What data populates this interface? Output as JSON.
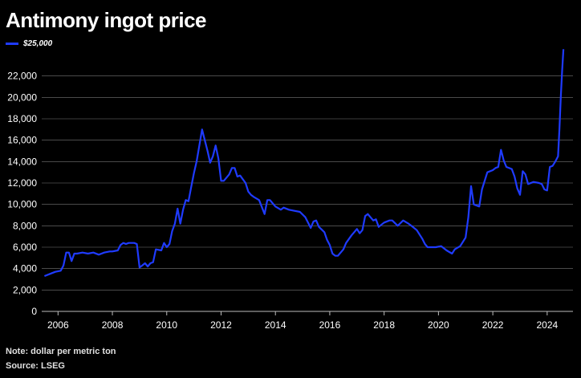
{
  "chart_data": {
    "type": "line",
    "title": "Antimony ingot price",
    "xlabel": "",
    "ylabel": "",
    "xlim": [
      2005.4,
      2024.95
    ],
    "ylim": [
      0,
      24000
    ],
    "yticks": [
      0,
      2000,
      4000,
      6000,
      8000,
      10000,
      12000,
      14000,
      16000,
      18000,
      20000,
      22000
    ],
    "ytick_labels": [
      "0",
      "2,000",
      "4,000",
      "6,000",
      "8,000",
      "10,000",
      "12,000",
      "14,000",
      "16,000",
      "18,000",
      "20,000",
      "22,000"
    ],
    "xticks": [
      2006,
      2008,
      2010,
      2012,
      2014,
      2016,
      2018,
      2020,
      2022,
      2024
    ],
    "xtick_labels": [
      "2006",
      "2008",
      "2010",
      "2012",
      "2014",
      "2016",
      "2018",
      "2020",
      "2022",
      "2024"
    ],
    "grid": true,
    "legend_position": "top-left",
    "series": [
      {
        "name": "$25,000",
        "color": "#1f3bff",
        "x": [
          2005.5,
          2005.7,
          2005.9,
          2006.1,
          2006.2,
          2006.3,
          2006.4,
          2006.5,
          2006.6,
          2006.7,
          2006.9,
          2007.1,
          2007.3,
          2007.5,
          2007.7,
          2007.9,
          2008.0,
          2008.2,
          2008.3,
          2008.4,
          2008.5,
          2008.6,
          2008.8,
          2008.9,
          2009.0,
          2009.1,
          2009.2,
          2009.3,
          2009.4,
          2009.5,
          2009.6,
          2009.8,
          2009.9,
          2010.0,
          2010.1,
          2010.2,
          2010.3,
          2010.4,
          2010.5,
          2010.6,
          2010.7,
          2010.8,
          2010.9,
          2011.0,
          2011.1,
          2011.2,
          2011.3,
          2011.4,
          2011.5,
          2011.6,
          2011.7,
          2011.8,
          2011.9,
          2012.0,
          2012.1,
          2012.3,
          2012.4,
          2012.5,
          2012.6,
          2012.7,
          2012.9,
          2013.0,
          2013.1,
          2013.2,
          2013.4,
          2013.6,
          2013.7,
          2013.8,
          2014.0,
          2014.2,
          2014.3,
          2014.5,
          2014.7,
          2014.9,
          2015.1,
          2015.3,
          2015.4,
          2015.5,
          2015.6,
          2015.8,
          2015.9,
          2016.0,
          2016.1,
          2016.2,
          2016.3,
          2016.5,
          2016.6,
          2016.8,
          2017.0,
          2017.1,
          2017.2,
          2017.3,
          2017.4,
          2017.6,
          2017.7,
          2017.8,
          2018.0,
          2018.2,
          2018.3,
          2018.5,
          2018.7,
          2018.9,
          2019.0,
          2019.2,
          2019.4,
          2019.5,
          2019.6,
          2019.7,
          2019.9,
          2020.1,
          2020.3,
          2020.5,
          2020.6,
          2020.8,
          2021.0,
          2021.1,
          2021.2,
          2021.3,
          2021.5,
          2021.6,
          2021.8,
          2022.0,
          2022.1,
          2022.2,
          2022.3,
          2022.4,
          2022.5,
          2022.7,
          2022.8,
          2022.9,
          2023.0,
          2023.1,
          2023.2,
          2023.3,
          2023.5,
          2023.7,
          2023.8,
          2023.9,
          2024.0,
          2024.1,
          2024.2,
          2024.3,
          2024.4,
          2024.45,
          2024.5,
          2024.55,
          2024.6
        ],
        "values": [
          3300,
          3500,
          3700,
          3800,
          4300,
          5500,
          5500,
          4700,
          5400,
          5400,
          5500,
          5400,
          5500,
          5300,
          5500,
          5600,
          5600,
          5700,
          6200,
          6400,
          6300,
          6400,
          6400,
          6300,
          4100,
          4300,
          4500,
          4200,
          4500,
          4600,
          5800,
          5700,
          6400,
          6000,
          6300,
          7500,
          8200,
          9600,
          8200,
          9500,
          10400,
          10300,
          11600,
          12900,
          14000,
          15500,
          17000,
          16000,
          15000,
          13900,
          14500,
          15500,
          14300,
          12200,
          12200,
          12800,
          13400,
          13400,
          12600,
          12700,
          12000,
          11200,
          10900,
          10700,
          10400,
          9100,
          10400,
          10400,
          9800,
          9500,
          9700,
          9500,
          9400,
          9300,
          8800,
          7800,
          8400,
          8500,
          7900,
          7400,
          6700,
          6200,
          5400,
          5200,
          5200,
          5800,
          6400,
          7100,
          7700,
          7300,
          7600,
          8900,
          9100,
          8500,
          8600,
          7900,
          8300,
          8500,
          8500,
          8000,
          8500,
          8200,
          8000,
          7600,
          6800,
          6300,
          6000,
          6000,
          6000,
          6100,
          5700,
          5400,
          5800,
          6100,
          6900,
          8800,
          11700,
          10000,
          9800,
          11400,
          13000,
          13200,
          13400,
          13500,
          15100,
          14100,
          13500,
          13300,
          12600,
          11500,
          10900,
          13100,
          12800,
          11900,
          12100,
          12000,
          11900,
          11400,
          11300,
          13500,
          13600,
          14000,
          14500,
          17000,
          20000,
          22500,
          24500
        ]
      }
    ],
    "note": "Note: dollar per metric ton",
    "source": "Source: LSEG"
  },
  "colors": {
    "background": "#000000",
    "grid": "#777777",
    "text": "#ffffff",
    "series": "#1f3bff"
  }
}
